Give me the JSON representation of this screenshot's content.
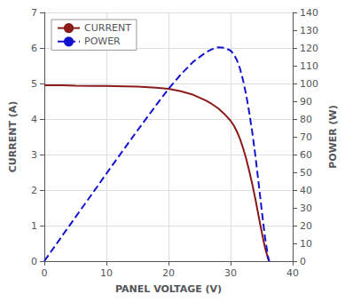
{
  "chart_data": {
    "type": "line",
    "xlabel": "PANEL VOLTAGE (V)",
    "ylabel": "CURRENT (A)",
    "y2label": "POWER (W)",
    "x": [
      0,
      1,
      2,
      3,
      5,
      8,
      10,
      13,
      15,
      18,
      20,
      22,
      24,
      26,
      27,
      28,
      29,
      30,
      30.5,
      31,
      31.5,
      32,
      32.5,
      33,
      33.5,
      34,
      34.5,
      35,
      35.5,
      36,
      36.2
    ],
    "series": [
      {
        "name": "CURRENT",
        "color": "#8B1A1A",
        "line_style": "solid",
        "values": [
          4.95,
          4.95,
          4.95,
          4.95,
          4.94,
          4.93,
          4.93,
          4.92,
          4.91,
          4.88,
          4.85,
          4.78,
          4.68,
          4.52,
          4.42,
          4.3,
          4.14,
          3.95,
          3.82,
          3.65,
          3.44,
          3.18,
          2.88,
          2.53,
          2.15,
          1.73,
          1.27,
          0.82,
          0.4,
          0.08,
          0.0
        ]
      },
      {
        "name": "POWER",
        "color": "#1414CC",
        "line_style": "dashed",
        "axis": "y2",
        "values": [
          0,
          5,
          9.9,
          14.9,
          24.7,
          39.4,
          49.3,
          63.9,
          73.6,
          87.8,
          97.0,
          105.2,
          112.3,
          117.5,
          119.3,
          120.4,
          120.1,
          118.5,
          116.4,
          113.2,
          108.4,
          101.8,
          93.6,
          83.5,
          72.1,
          58.8,
          43.9,
          28.7,
          14.2,
          2.9,
          0
        ]
      }
    ],
    "xlim": [
      0,
      40
    ],
    "xticks": [
      0,
      10,
      20,
      30,
      40
    ],
    "ylim": [
      0,
      7
    ],
    "yticks": [
      0,
      1,
      2,
      3,
      4,
      5,
      6,
      7
    ],
    "y2lim": [
      0,
      140
    ],
    "y2ticks": [
      0,
      10,
      20,
      30,
      40,
      50,
      60,
      70,
      80,
      90,
      100,
      110,
      120,
      130,
      140
    ],
    "grid": true,
    "legend": "upper left"
  }
}
